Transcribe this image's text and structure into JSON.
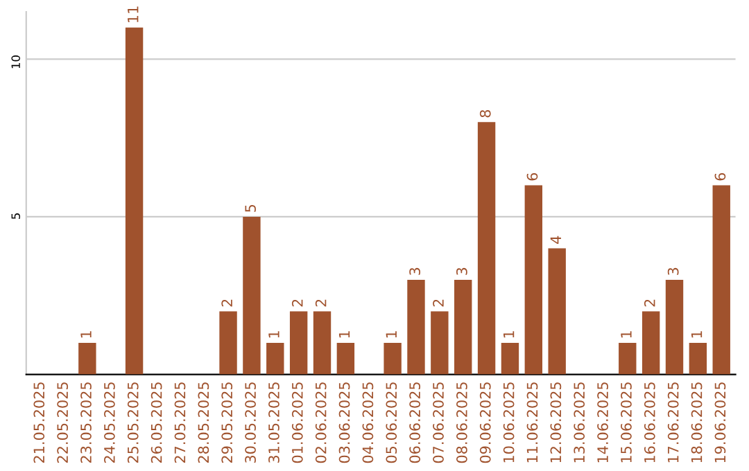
{
  "chart_data": {
    "type": "bar",
    "categories": [
      "21.05.2025",
      "22.05.2025",
      "23.05.2025",
      "24.05.2025",
      "25.05.2025",
      "26.05.2025",
      "27.05.2025",
      "28.05.2025",
      "29.05.2025",
      "30.05.2025",
      "31.05.2025",
      "01.06.2025",
      "02.06.2025",
      "03.06.2025",
      "04.06.2025",
      "05.06.2025",
      "06.06.2025",
      "07.06.2025",
      "08.06.2025",
      "09.06.2025",
      "10.06.2025",
      "11.06.2025",
      "12.06.2025",
      "13.06.2025",
      "14.06.2025",
      "15.06.2025",
      "16.06.2025",
      "17.06.2025",
      "18.06.2025",
      "19.06.2025"
    ],
    "values": [
      0,
      0,
      1,
      0,
      11,
      0,
      0,
      0,
      2,
      5,
      1,
      2,
      2,
      1,
      0,
      1,
      3,
      2,
      3,
      8,
      1,
      6,
      4,
      0,
      0,
      1,
      2,
      3,
      1,
      6
    ],
    "value_labels": [
      null,
      null,
      "1",
      null,
      "11",
      null,
      null,
      null,
      "2",
      "5",
      "1",
      "2",
      "2",
      "1",
      null,
      "1",
      "3",
      "2",
      "3",
      "8",
      "1",
      "6",
      "4",
      null,
      null,
      "1",
      "2",
      "3",
      "1",
      "6"
    ],
    "color": "#a0522d",
    "ylim": [
      0,
      11.5
    ],
    "yticks": [
      5,
      10
    ],
    "grid": "y"
  }
}
